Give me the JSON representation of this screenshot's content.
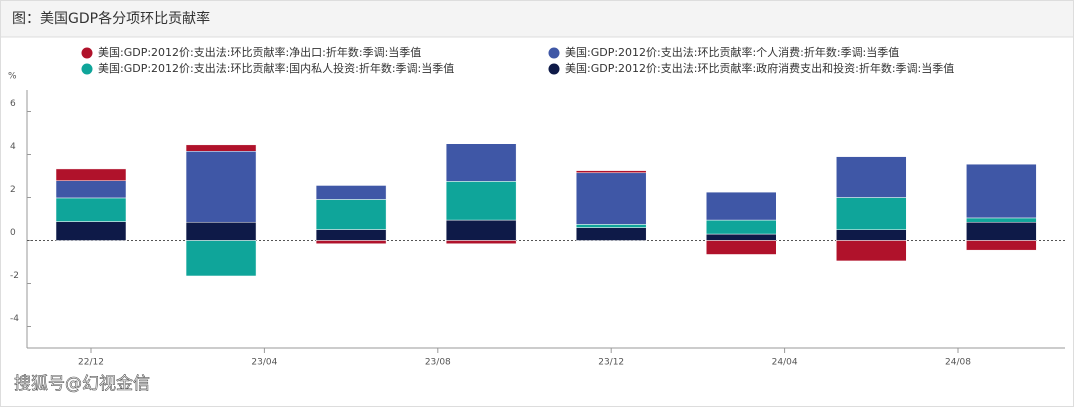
{
  "chart_data": {
    "type": "stacked-bar",
    "title": "图：美国GDP各分项环比贡献率",
    "y_label": "%",
    "watermark": "搜狐号@幻视金信",
    "categories": [
      null,
      null,
      null,
      null,
      null,
      null,
      null,
      null
    ],
    "xticks": [
      "22/12",
      "23/04",
      "23/08",
      "23/12",
      "24/04",
      "24/08"
    ],
    "ylim": [
      -5,
      7
    ],
    "yticks": [
      -4,
      -2,
      0,
      2,
      4,
      6
    ],
    "series": [
      {
        "name": "美国:GDP:2012价:支出法:环比贡献率:净出口:折年数:季调:当季值",
        "color": "#b0122b",
        "values": [
          0.55,
          0.3,
          -0.15,
          -0.15,
          0.1,
          -0.65,
          -0.95,
          -0.45
        ]
      },
      {
        "name": "美国:GDP:2012价:支出法:环比贡献率:个人消费:折年数:季调:当季值",
        "color": "#3f57a6",
        "values": [
          0.8,
          3.3,
          0.65,
          1.75,
          2.4,
          1.3,
          1.9,
          2.5
        ]
      },
      {
        "name": "美国:GDP:2012价:支出法:环比贡献率:国内私人投资:折年数:季调:当季值",
        "color": "#0fa59a",
        "values": [
          1.1,
          -1.65,
          1.4,
          1.8,
          0.15,
          0.65,
          1.5,
          0.2
        ]
      },
      {
        "name": "美国:GDP:2012价:支出法:环比贡献率:政府消费支出和投资:折年数:季调:当季值",
        "color": "#0e1a48",
        "values": [
          0.88,
          0.85,
          0.51,
          0.95,
          0.6,
          0.3,
          0.5,
          0.85
        ]
      }
    ]
  }
}
